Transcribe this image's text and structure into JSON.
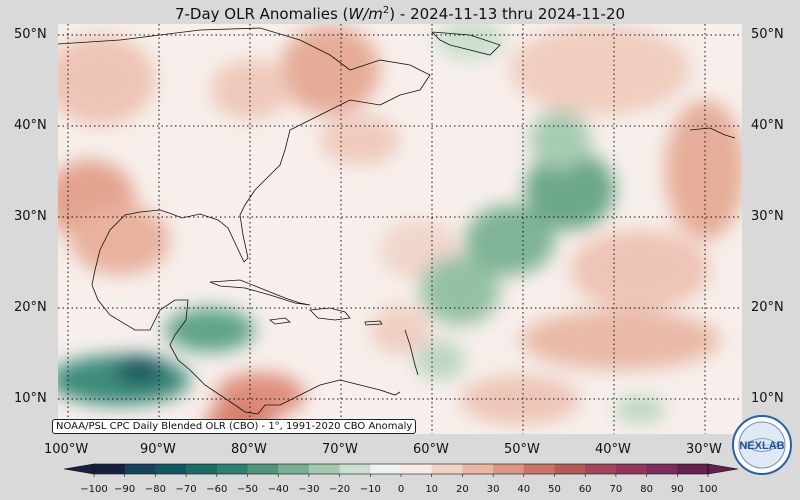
{
  "title": {
    "prefix": "7-Day OLR Anomalies (",
    "unit_base": "W/m",
    "unit_exp": "2",
    "suffix": ") - 2024-11-13 thru 2024-11-20"
  },
  "source_note": "NOAA/PSL CPC Daily Blended OLR (CBO) - 1°, 1991-2020 CBO Anomaly",
  "logo_text": "NEXLAB",
  "lat_labels_left": [
    "50°N",
    "40°N",
    "30°N",
    "20°N",
    "10°N"
  ],
  "lat_labels_right": [
    "50°N",
    "40°N",
    "30°N",
    "20°N",
    "10°N"
  ],
  "lon_labels": [
    "100°W",
    "90°W",
    "80°W",
    "70°W",
    "60°W",
    "50°W",
    "40°W",
    "30°W"
  ],
  "colorbar": {
    "ticks": [
      "−100",
      "−90",
      "−80",
      "−70",
      "−60",
      "−50",
      "−40",
      "−30",
      "−20",
      "−10",
      "0",
      "10",
      "20",
      "30",
      "40",
      "50",
      "60",
      "70",
      "80",
      "90",
      "100"
    ],
    "colors": [
      "#16213f",
      "#18415a",
      "#12575f",
      "#1d6b65",
      "#2f7e6f",
      "#4f957e",
      "#78ae94",
      "#a4c9af",
      "#cbe0d2",
      "#eef3ef",
      "#f8eae6",
      "#f3d2c6",
      "#eab7a5",
      "#dc9784",
      "#c97565",
      "#b65a57",
      "#a5445a",
      "#92365c",
      "#7d2a5c",
      "#64204f"
    ]
  },
  "colors": {
    "background": "#d9d9d9",
    "neutral": "#f7efec",
    "positive": "#e9b6a2",
    "negative": "#6fa98a"
  }
}
